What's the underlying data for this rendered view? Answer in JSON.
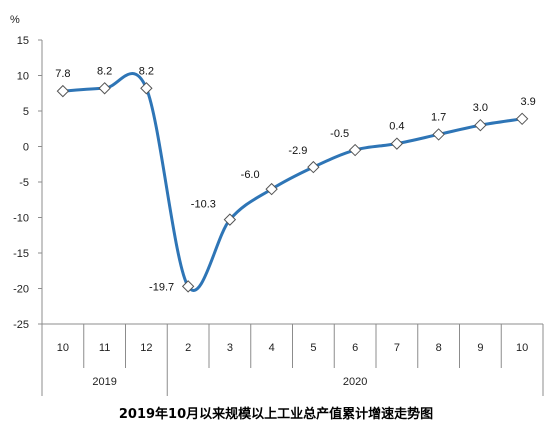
{
  "chart_data": {
    "type": "line",
    "title": "2019年10月以来规模以上工业总产值累计增速走势图",
    "ylabel": "%",
    "xlabel": "",
    "ylim": [
      -25,
      15
    ],
    "yticks": [
      15,
      10,
      5,
      0,
      -5,
      -10,
      -15,
      -20,
      -25
    ],
    "categories": [
      "10",
      "11",
      "12",
      "2",
      "3",
      "4",
      "5",
      "6",
      "7",
      "8",
      "9",
      "10"
    ],
    "year_groups": [
      {
        "label": "2019",
        "start": 0,
        "end": 2
      },
      {
        "label": "2020",
        "start": 3,
        "end": 11
      }
    ],
    "series": [
      {
        "values": [
          7.8,
          8.2,
          8.2,
          -19.7,
          -10.3,
          -6.0,
          -2.9,
          -0.5,
          0.4,
          1.7,
          3.0,
          3.9
        ],
        "labels": [
          "7.8",
          "8.2",
          "8.2",
          "-19.7",
          "-10.3",
          "-6.0",
          "-2.9",
          "-0.5",
          "0.4",
          "1.7",
          "3.0",
          "3.9"
        ],
        "color": "#2e75b6",
        "marker": "diamond"
      }
    ],
    "grid": false,
    "smooth": true
  }
}
